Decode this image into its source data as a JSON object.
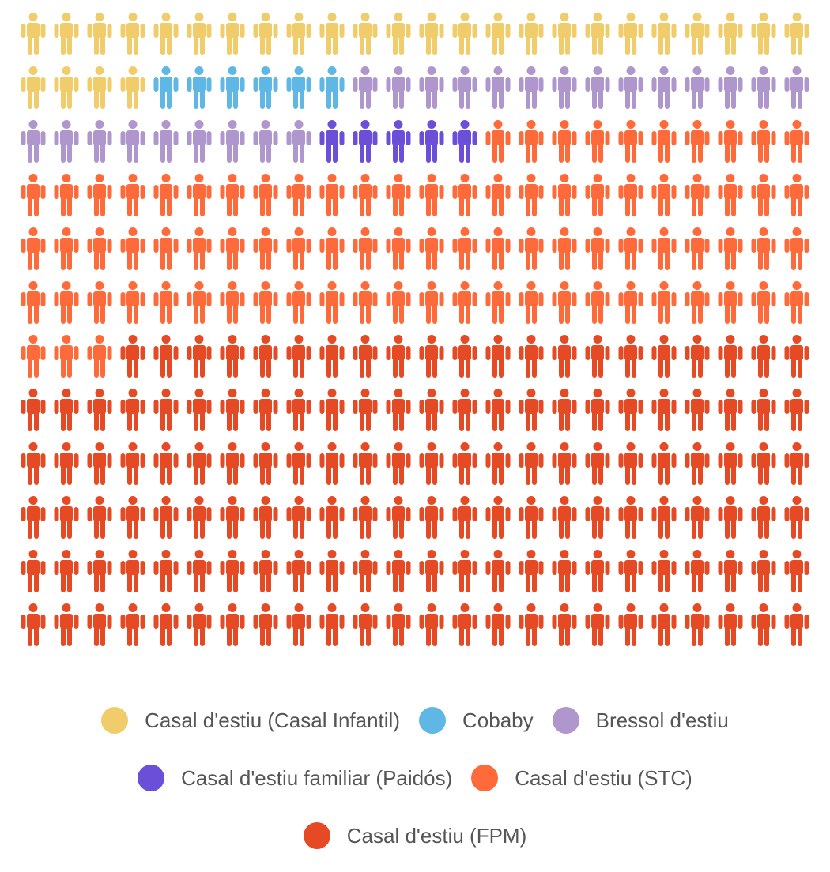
{
  "chart_data": {
    "type": "pictogram",
    "icon": "person-icon",
    "rows": 12,
    "columns": 24,
    "series": [
      {
        "name": "Casal d'estiu (Casal Infantil)",
        "value": 28,
        "color": "#F0CC6A"
      },
      {
        "name": "Cobaby",
        "value": 6,
        "color": "#5EB7E5"
      },
      {
        "name": "Bressol d'estiu",
        "value": 23,
        "color": "#AF96CC"
      },
      {
        "name": "Casal d'estiu familiar (Paidós)",
        "value": 5,
        "color": "#6B4FD8"
      },
      {
        "name": "Casal d'estiu (STC)",
        "value": 85,
        "color": "#FF6A3A"
      },
      {
        "name": "Casal d'estiu (FPM)",
        "value": 141,
        "color": "#E54A24"
      }
    ],
    "legend_position": "bottom"
  }
}
